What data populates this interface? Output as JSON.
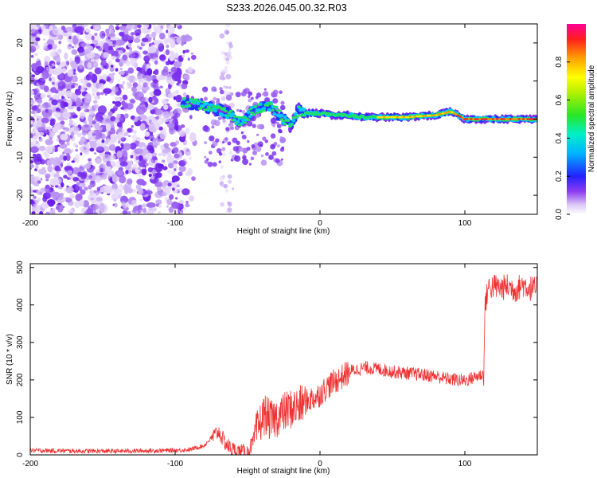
{
  "title": "S233.2026.045.00.32.R03",
  "chart_data": [
    {
      "type": "heatmap",
      "name": "spectrogram",
      "xlabel": "Height of straight line (km)",
      "ylabel": "Frequency (Hz)",
      "xlim": [
        -200,
        150
      ],
      "ylim": [
        -25,
        25
      ],
      "xticks": [
        -200,
        -100,
        0,
        100
      ],
      "xtick_labels": [
        "-200",
        "-100",
        "0",
        "100"
      ],
      "yticks": [
        -20,
        -10,
        0,
        10,
        20
      ],
      "ytick_labels": [
        "-20",
        "-10",
        "0",
        "10",
        "20"
      ],
      "colorbar": {
        "label": "Normalized spectral amplitude",
        "range": [
          0,
          1
        ],
        "ticks": [
          0.0,
          0.2,
          0.4,
          0.6,
          0.8
        ],
        "tick_labels": [
          "0.0",
          "0.2",
          "0.4",
          "0.6",
          "0.8"
        ],
        "colormap": "rainbow (white-lavender at 0, violet, blue, cyan, green, yellow, orange, red, magenta at 1)"
      },
      "features": {
        "noise_region_km": [
          -200,
          -85
        ],
        "signal_start_km": -95,
        "signal_track": {
          "x": [
            -95,
            -85,
            -75,
            -65,
            -55,
            -45,
            -35,
            -25,
            -20,
            -15,
            -10,
            0,
            10,
            20,
            30,
            40,
            50,
            60,
            70,
            80,
            90,
            100,
            110,
            120,
            130,
            140,
            150
          ],
          "y": [
            4.5,
            4.0,
            3.0,
            2.0,
            -1.0,
            2.5,
            3.5,
            0.0,
            -2.0,
            2.5,
            1.5,
            1.5,
            1.0,
            1.0,
            0.5,
            0.5,
            0.5,
            0.5,
            0.8,
            1.0,
            2.0,
            0.0,
            0.0,
            0.0,
            0.0,
            0.0,
            0.0
          ]
        }
      }
    },
    {
      "type": "line",
      "name": "snr",
      "xlabel": "Height of straight line (km)",
      "ylabel": "SNR (10 * v/v)",
      "xlim": [
        -200,
        150
      ],
      "ylim": [
        0,
        510
      ],
      "xticks": [
        -200,
        -100,
        0,
        100
      ],
      "xtick_labels": [
        "-200",
        "-100",
        "0",
        "100"
      ],
      "yticks": [
        0,
        100,
        200,
        300,
        400,
        500
      ],
      "ytick_labels": [
        "0",
        "100",
        "200",
        "300",
        "400",
        "500"
      ],
      "color": "#ee3333",
      "series": [
        {
          "name": "SNR",
          "x": [
            -200,
            -180,
            -160,
            -140,
            -120,
            -100,
            -90,
            -80,
            -75,
            -70,
            -66,
            -62,
            -58,
            -54,
            -50,
            -46,
            -42,
            -38,
            -34,
            -30,
            -26,
            -22,
            -18,
            -14,
            -10,
            -6,
            -2,
            2,
            6,
            10,
            14,
            18,
            22,
            26,
            30,
            34,
            38,
            42,
            46,
            50,
            55,
            60,
            65,
            70,
            75,
            80,
            85,
            90,
            95,
            100,
            105,
            110,
            113,
            114,
            116,
            120,
            125,
            130,
            135,
            140,
            145,
            150
          ],
          "y": [
            12,
            11,
            10,
            10,
            11,
            12,
            14,
            25,
            45,
            62,
            35,
            18,
            10,
            8,
            6,
            35,
            80,
            110,
            90,
            100,
            110,
            120,
            125,
            130,
            140,
            150,
            155,
            170,
            185,
            195,
            205,
            215,
            225,
            228,
            232,
            232,
            230,
            228,
            225,
            222,
            220,
            218,
            216,
            214,
            212,
            210,
            205,
            202,
            200,
            198,
            205,
            212,
            215,
            400,
            445,
            450,
            445,
            450,
            440,
            455,
            445,
            440
          ]
        }
      ]
    }
  ]
}
